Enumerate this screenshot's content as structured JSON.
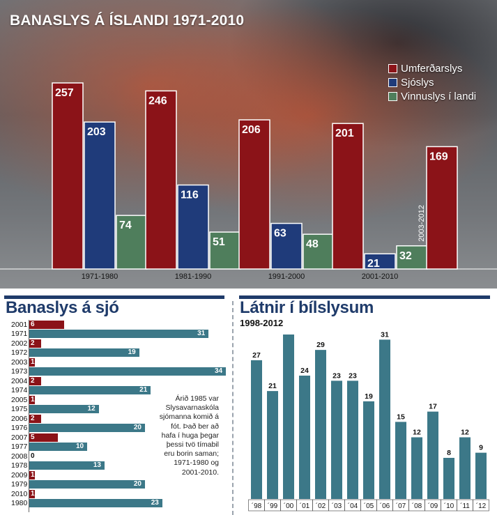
{
  "top": {
    "title": "BANASLYS Á ÍSLANDI 1971-2010"
  },
  "legend": [
    {
      "label": "Umferðarslys",
      "color": "#8b1318"
    },
    {
      "label": "Sjóslys",
      "color": "#1f3b7a"
    },
    {
      "label": "Vinnuslys í landi",
      "color": "#4f7e5c"
    }
  ],
  "sea": {
    "title": "Banaslys á sjó",
    "note": "Árið 1985 var Slysavarnaskóla sjómanna komið á fót. Það ber að hafa í huga þegar þessi tvö tímabil eru borin saman; 1971-1980 og 2001-2010."
  },
  "cars": {
    "title": "Látnir í bílslysum",
    "subtitle": "1998-2012"
  },
  "chart_data": [
    {
      "type": "bar",
      "title": "BANASLYS Á ÍSLANDI 1971-2010",
      "categories": [
        "1971-1980",
        "1981-1990",
        "1991-2000",
        "2001-2010"
      ],
      "series": [
        {
          "name": "Umferðarslys",
          "values": [
            257,
            246,
            206,
            201
          ],
          "color": "#8b1318"
        },
        {
          "name": "Sjóslys",
          "values": [
            203,
            116,
            63,
            21
          ],
          "color": "#1f3b7a"
        },
        {
          "name": "Vinnuslys í landi",
          "values": [
            74,
            51,
            48,
            32
          ],
          "color": "#4f7e5c"
        }
      ],
      "extra_bar": {
        "category_label": "2003-2012",
        "value": 169,
        "series": "Umferðarslys"
      },
      "ylim": [
        0,
        270
      ]
    },
    {
      "type": "bar",
      "orientation": "horizontal",
      "title": "Banaslys á sjó",
      "pairs": [
        {
          "recent_year": "2001",
          "recent": 6,
          "old_year": "1971",
          "old": 31
        },
        {
          "recent_year": "2002",
          "recent": 2,
          "old_year": "1972",
          "old": 19
        },
        {
          "recent_year": "2003",
          "recent": 1,
          "old_year": "1973",
          "old": 34
        },
        {
          "recent_year": "2004",
          "recent": 2,
          "old_year": "1974",
          "old": 21
        },
        {
          "recent_year": "2005",
          "recent": 1,
          "old_year": "1975",
          "old": 12
        },
        {
          "recent_year": "2006",
          "recent": 2,
          "old_year": "1976",
          "old": 20
        },
        {
          "recent_year": "2007",
          "recent": 5,
          "old_year": "1977",
          "old": 10
        },
        {
          "recent_year": "2008",
          "recent": 0,
          "old_year": "1978",
          "old": 13
        },
        {
          "recent_year": "2009",
          "recent": 1,
          "old_year": "1979",
          "old": 20
        },
        {
          "recent_year": "2010",
          "recent": 1,
          "old_year": "1980",
          "old": 23
        }
      ],
      "colors": {
        "recent": "#8b1318",
        "old": "#3c7888"
      },
      "xlim": [
        0,
        34
      ]
    },
    {
      "type": "bar",
      "title": "Látnir í bílslysum",
      "subtitle": "1998-2012",
      "categories": [
        "´98",
        "´99",
        "´00",
        "´01",
        "´02",
        "´03",
        "´04",
        "´05",
        "´06",
        "´07",
        "´08",
        "´09",
        "´10",
        "´11",
        "´12"
      ],
      "values": [
        27,
        21,
        32,
        24,
        29,
        23,
        23,
        19,
        31,
        15,
        12,
        17,
        8,
        12,
        9
      ],
      "color": "#3c7888",
      "ylim": [
        0,
        32
      ]
    }
  ]
}
